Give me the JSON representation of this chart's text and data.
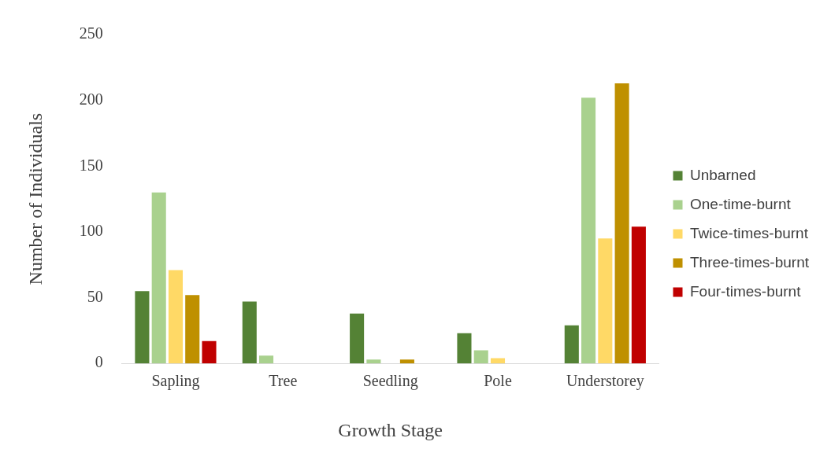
{
  "chart_data": {
    "type": "bar",
    "xlabel": "Growth Stage",
    "ylabel": "Number of Individuals",
    "categories": [
      "Sapling",
      "Tree",
      "Seedling",
      "Pole",
      "Understorey"
    ],
    "series": [
      {
        "name": "Unbarned",
        "color": "#548235",
        "values": [
          55,
          47,
          38,
          23,
          29
        ]
      },
      {
        "name": "One-time-burnt",
        "color": "#a9d18e",
        "values": [
          130,
          6,
          3,
          10,
          202
        ]
      },
      {
        "name": "Twice-times-burnt",
        "color": "#ffd966",
        "values": [
          71,
          0,
          0,
          4,
          95
        ]
      },
      {
        "name": "Three-times-burnt",
        "color": "#bf9000",
        "values": [
          52,
          0,
          3,
          0,
          213
        ]
      },
      {
        "name": "Four-times-burnt",
        "color": "#c00000",
        "values": [
          17,
          0,
          0,
          0,
          104
        ]
      }
    ],
    "ylim": [
      0,
      250
    ],
    "yticks": [
      0,
      50,
      100,
      150,
      200,
      250
    ],
    "grid": false,
    "legend": "right"
  }
}
